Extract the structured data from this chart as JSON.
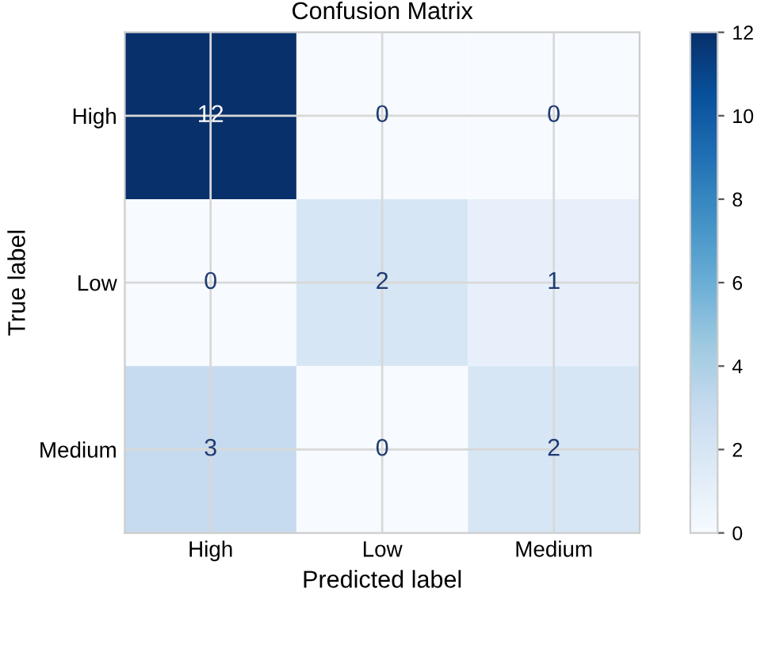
{
  "chart_data": {
    "type": "heatmap",
    "title": "Confusion Matrix",
    "xlabel": "Predicted label",
    "ylabel": "True label",
    "categories": [
      "High",
      "Low",
      "Medium"
    ],
    "y_categories": [
      "High",
      "Low",
      "Medium"
    ],
    "cells": [
      [
        12,
        0,
        0
      ],
      [
        0,
        2,
        1
      ],
      [
        3,
        0,
        2
      ]
    ],
    "clim": [
      0,
      12
    ],
    "cticks": [
      0,
      2,
      4,
      6,
      8,
      10,
      12
    ],
    "grid": true,
    "data_labels": true
  }
}
